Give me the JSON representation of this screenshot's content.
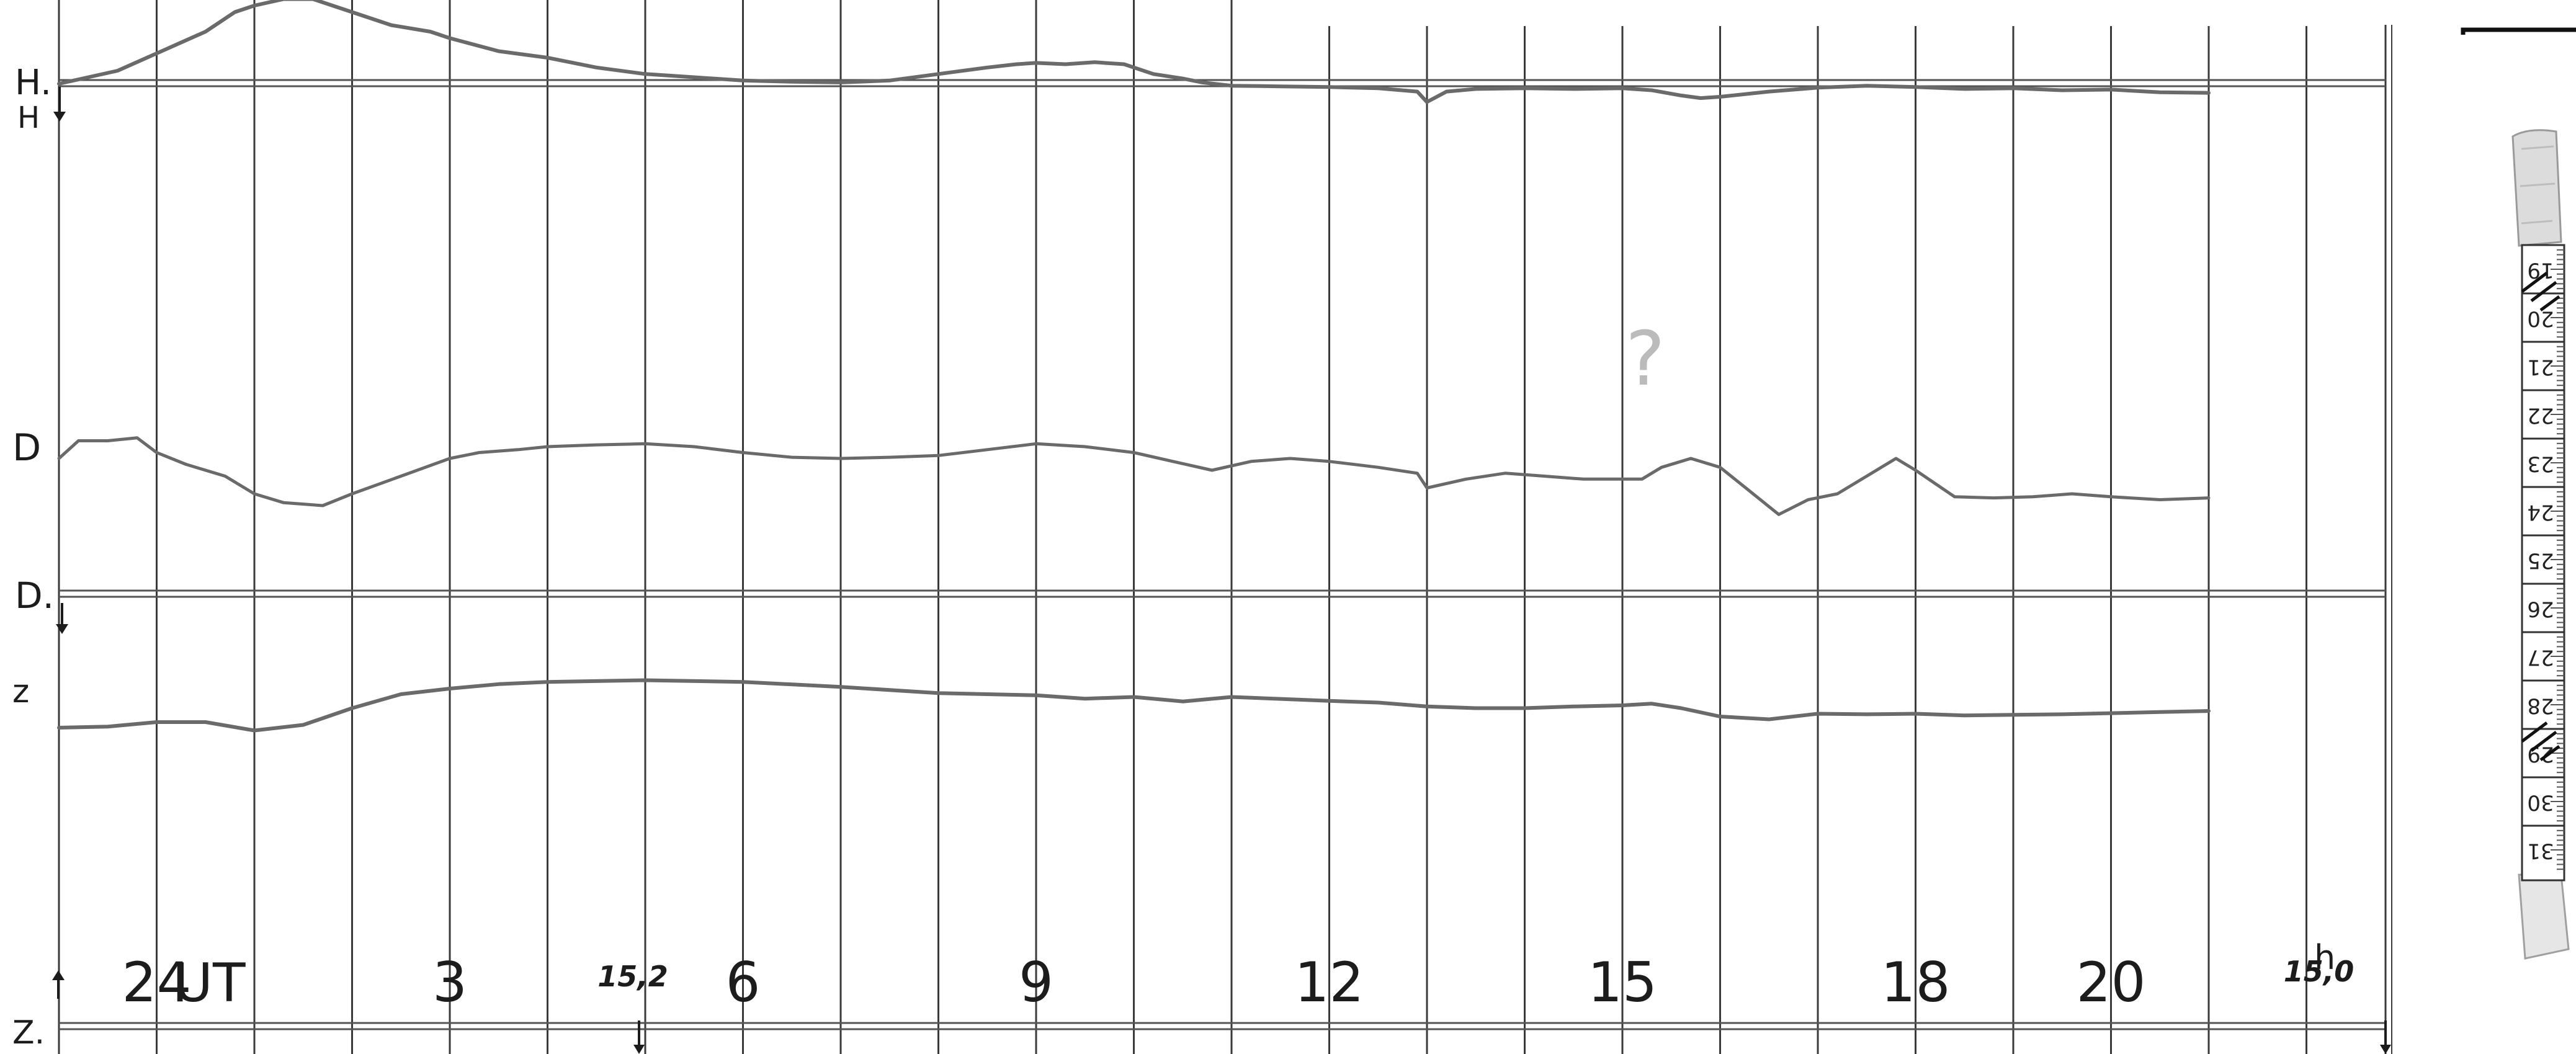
{
  "chart_data": {
    "type": "line",
    "title": "",
    "xlabel": "",
    "ylabel": "",
    "x_unit_label": "UT",
    "x_tick_labels": [
      {
        "label": "24",
        "x": 0
      },
      {
        "label": "3",
        "x": 3
      },
      {
        "label": "6",
        "x": 6
      },
      {
        "label": "9",
        "x": 9
      },
      {
        "label": "12",
        "x": 12
      },
      {
        "label": "15",
        "x": 15
      },
      {
        "label": "18",
        "x": 18
      },
      {
        "label": "20",
        "x": 20
      }
    ],
    "hour_suffix": "h",
    "xlim": [
      -1,
      22
    ],
    "grid": true,
    "grid_step": 1,
    "scale_values": [
      {
        "label": "15,2",
        "x": 5
      },
      {
        "label": "15,0",
        "x": 22
      }
    ],
    "baselines": [
      {
        "label": "H.",
        "arrow_label": "H"
      },
      {
        "label": "D."
      },
      {
        "label": "Z."
      }
    ],
    "series": [
      {
        "name": "H",
        "x": [
          -1,
          -0.7,
          -0.4,
          -0.1,
          0.2,
          0.5,
          0.8,
          1.0,
          1.3,
          1.6,
          2.0,
          2.4,
          2.8,
          3.0,
          3.5,
          4.0,
          4.5,
          5.0,
          5.5,
          6.0,
          6.5,
          7.0,
          7.5,
          8.0,
          8.5,
          8.8,
          9.0,
          9.3,
          9.6,
          9.9,
          10.2,
          10.5,
          10.7,
          11.0,
          11.5,
          12.0,
          12.5,
          12.9,
          13.0,
          13.2,
          13.5,
          14.0,
          14.5,
          15.0,
          15.3,
          15.6,
          15.8,
          16.0,
          16.5,
          17.0,
          17.5,
          18.0,
          18.5,
          19.0,
          19.5,
          20.0,
          20.5,
          21.0
        ],
        "values": [
          0,
          1,
          2,
          4,
          6,
          8,
          11,
          12,
          13,
          13,
          11,
          9,
          8,
          7,
          5,
          4,
          2.5,
          1.5,
          1,
          0.5,
          0.3,
          0.2,
          0.5,
          1.5,
          2.5,
          3,
          3.2,
          3,
          3.3,
          3,
          1.5,
          0.8,
          0.2,
          -0.3,
          -0.4,
          -0.5,
          -0.7,
          -1.2,
          -2.8,
          -1.2,
          -0.8,
          -0.7,
          -0.8,
          -0.7,
          -1.0,
          -1.8,
          -2.2,
          -2.0,
          -1.2,
          -0.6,
          -0.3,
          -0.5,
          -0.8,
          -0.7,
          -1.0,
          -0.9,
          -1.3,
          -1.4
        ]
      },
      {
        "name": "D",
        "x": [
          -1,
          -0.8,
          -0.5,
          -0.2,
          0,
          0.3,
          0.7,
          1.0,
          1.3,
          1.7,
          2.0,
          2.5,
          3.0,
          3.3,
          3.7,
          4.0,
          4.5,
          5.0,
          5.5,
          6.0,
          6.5,
          7.0,
          7.5,
          8.0,
          8.5,
          9.0,
          9.5,
          10.0,
          10.4,
          10.8,
          11.2,
          11.6,
          12.0,
          12.5,
          12.9,
          13.0,
          13.4,
          13.8,
          14.2,
          14.6,
          14.9,
          15.2,
          15.4,
          15.7,
          16.0,
          16.3,
          16.6,
          16.9,
          17.2,
          17.5,
          17.8,
          18.0,
          18.4,
          18.8,
          19.2,
          19.6,
          20.0,
          20.5,
          21.0
        ],
        "values": [
          -2,
          1,
          1,
          1.5,
          -1,
          -3,
          -5,
          -8,
          -9.5,
          -10,
          -8,
          -5,
          -2,
          -1,
          -0.5,
          0,
          0.3,
          0.5,
          0,
          -1,
          -1.8,
          -2,
          -1.8,
          -1.5,
          -0.5,
          0.5,
          0,
          -1,
          -2.5,
          -4,
          -2.5,
          -2,
          -2.5,
          -3.5,
          -4.5,
          -7,
          -5.5,
          -4.5,
          -5,
          -5.5,
          -5.5,
          -5.5,
          -3.5,
          -2.0,
          -3.5,
          -7.5,
          -11.5,
          -9,
          -8,
          -5,
          -2,
          -4,
          -8.5,
          -8.7,
          -8.5,
          -8,
          -8.5,
          -9,
          -8.7
        ]
      },
      {
        "name": "Z",
        "x": [
          -1,
          -0.5,
          0,
          0.5,
          1.0,
          1.5,
          2.0,
          2.5,
          3.0,
          3.5,
          4.0,
          5.0,
          6.0,
          7.0,
          8.0,
          9.0,
          9.5,
          10.0,
          10.5,
          11.0,
          12.0,
          12.5,
          13.0,
          13.5,
          14.0,
          14.5,
          15.0,
          15.3,
          15.6,
          16.0,
          16.5,
          17.0,
          17.5,
          18.0,
          18.5,
          19.0,
          19.5,
          20.0,
          20.5,
          21.0
        ],
        "values": [
          -7,
          -6.8,
          -6,
          -6,
          -7.5,
          -6.5,
          -3.5,
          -1,
          0,
          0.8,
          1.2,
          1.5,
          1.2,
          0.3,
          -0.8,
          -1.2,
          -1.8,
          -1.5,
          -2.3,
          -1.5,
          -2.2,
          -2.5,
          -3.2,
          -3.5,
          -3.5,
          -3.2,
          -3,
          -2.7,
          -3.5,
          -5,
          -5.5,
          -4.5,
          -4.6,
          -4.5,
          -4.8,
          -4.7,
          -4.6,
          -4.4,
          -4.2,
          -4.0
        ]
      }
    ],
    "ruler": {
      "labels": [
        "19",
        "20",
        "21",
        "22",
        "23",
        "24",
        "25",
        "26",
        "27",
        "28",
        "29",
        "30",
        "31"
      ]
    }
  },
  "colors": {
    "background": "#ffffff",
    "ink": "#1c1c1c",
    "trace": "#6a6a6a",
    "grid": "#3a3a3a"
  }
}
